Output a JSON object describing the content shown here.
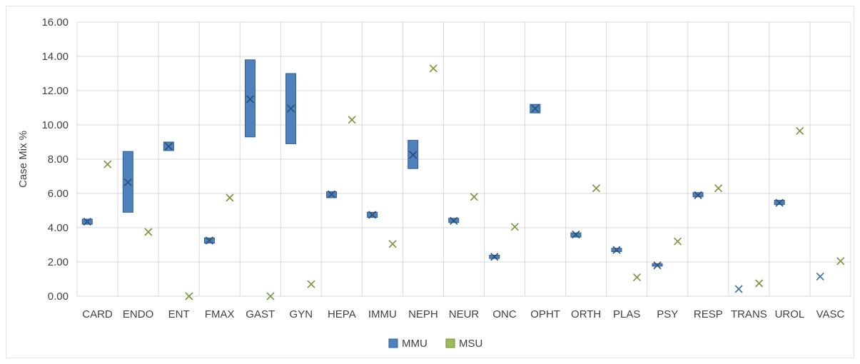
{
  "chart_data": {
    "type": "box",
    "ylabel": "Case Mix %",
    "xlabel": "",
    "title": "",
    "ylim": [
      0,
      16
    ],
    "yticks": [
      "0.00",
      "2.00",
      "4.00",
      "6.00",
      "8.00",
      "10.00",
      "12.00",
      "14.00",
      "16.00"
    ],
    "grid": true,
    "legend_position": "bottom",
    "categories": [
      "CARD",
      "ENDO",
      "ENT",
      "FMAX",
      "GAST",
      "GYN",
      "HEPA",
      "IMMU",
      "NEPH",
      "NEUR",
      "ONC",
      "OPHT",
      "ORTH",
      "PLAS",
      "PSY",
      "RESP",
      "TRANS",
      "UROL",
      "VASC"
    ],
    "series": [
      {
        "name": "MMU",
        "color": "#4f81bd",
        "marker_color": "#3a6aa0",
        "low": [
          4.2,
          4.9,
          8.5,
          3.1,
          9.3,
          8.9,
          5.75,
          4.6,
          7.45,
          4.3,
          2.2,
          10.7,
          3.45,
          2.6,
          1.75,
          5.8,
          0.4,
          5.35,
          1.1
        ],
        "high": [
          4.5,
          8.45,
          9.0,
          3.4,
          13.8,
          13.0,
          6.1,
          4.9,
          9.1,
          4.55,
          2.4,
          11.2,
          3.7,
          2.8,
          1.9,
          6.05,
          0.45,
          5.6,
          1.2
        ],
        "mean": [
          4.35,
          6.65,
          8.75,
          3.25,
          11.5,
          10.95,
          5.95,
          4.75,
          8.25,
          4.4,
          2.3,
          10.95,
          3.6,
          2.7,
          1.8,
          5.9,
          0.42,
          5.45,
          1.15
        ]
      },
      {
        "name": "MSU",
        "color": "#9bbb59",
        "marker_color": "#77933c",
        "low": [
          7.7,
          3.75,
          0.0,
          5.75,
          0.0,
          0.7,
          10.3,
          3.05,
          13.3,
          5.8,
          4.05,
          null,
          6.3,
          1.1,
          3.2,
          6.3,
          0.75,
          9.65,
          2.05
        ],
        "high": [
          7.7,
          3.75,
          0.0,
          5.75,
          0.0,
          0.7,
          10.3,
          3.05,
          13.3,
          5.8,
          4.05,
          null,
          6.3,
          1.1,
          3.2,
          6.3,
          0.75,
          9.65,
          2.05
        ],
        "mean": [
          7.7,
          3.75,
          0.0,
          5.75,
          0.0,
          0.7,
          10.3,
          3.05,
          13.3,
          5.8,
          4.05,
          null,
          6.3,
          1.1,
          3.2,
          6.3,
          0.75,
          9.65,
          2.05
        ]
      }
    ]
  }
}
